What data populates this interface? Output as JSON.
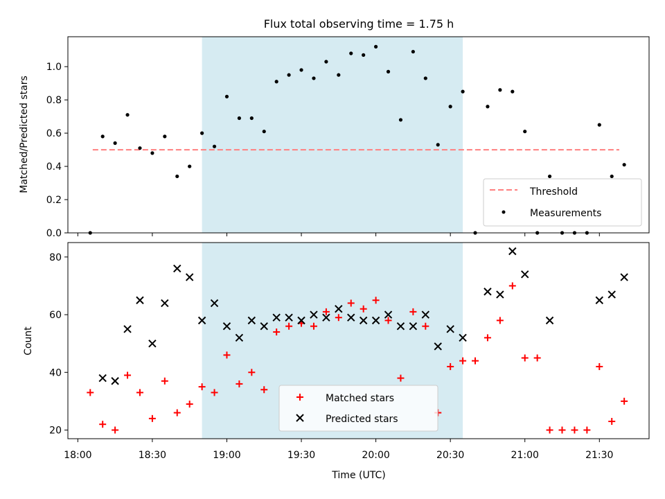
{
  "colors": {
    "shade": "#add8e6",
    "threshold": "#ff7f7f",
    "matched": "#ff0000",
    "predicted": "#000000",
    "measurement": "#000000"
  },
  "chart_data": [
    {
      "type": "scatter",
      "title": "Flux total observing time = 1.75 h",
      "xlabel": "",
      "ylabel": "Matched/Predicted stars",
      "xlim": [
        "17:56",
        "21:50"
      ],
      "ylim": [
        0,
        1.18
      ],
      "yticks": [
        0.0,
        0.2,
        0.4,
        0.6,
        0.8,
        1.0
      ],
      "ytick_labels": [
        "0.0",
        "0.2",
        "0.4",
        "0.6",
        "0.8",
        "1.0"
      ],
      "shaded_interval": [
        "18:50",
        "20:35"
      ],
      "threshold": {
        "name": "Threshold",
        "value": 0.5,
        "x_range": [
          "18:06",
          "21:38"
        ]
      },
      "legend": {
        "position": "lower right",
        "entries": [
          "Threshold",
          "Measurements"
        ]
      },
      "series": [
        {
          "name": "Measurements",
          "marker": "dot",
          "x": [
            "18:05",
            "18:10",
            "18:15",
            "18:20",
            "18:25",
            "18:30",
            "18:35",
            "18:40",
            "18:45",
            "18:50",
            "18:55",
            "19:00",
            "19:05",
            "19:10",
            "19:15",
            "19:20",
            "19:25",
            "19:30",
            "19:35",
            "19:40",
            "19:45",
            "19:50",
            "19:55",
            "20:00",
            "20:05",
            "20:10",
            "20:15",
            "20:20",
            "20:25",
            "20:30",
            "20:35",
            "20:40",
            "20:45",
            "20:50",
            "20:55",
            "21:00",
            "21:05",
            "21:10",
            "21:15",
            "21:20",
            "21:25",
            "21:30",
            "21:35",
            "21:40"
          ],
          "y": [
            0.0,
            0.58,
            0.54,
            0.71,
            0.51,
            0.48,
            0.58,
            0.34,
            0.4,
            0.6,
            0.52,
            0.82,
            0.69,
            0.69,
            0.61,
            0.91,
            0.95,
            0.98,
            0.93,
            1.03,
            0.95,
            1.08,
            1.07,
            1.12,
            0.97,
            0.68,
            1.09,
            0.93,
            0.53,
            0.76,
            0.85,
            0.0,
            0.76,
            0.86,
            0.85,
            0.61,
            0.0,
            0.34,
            0.0,
            0.0,
            0.0,
            0.65,
            0.34,
            0.41
          ]
        }
      ]
    },
    {
      "type": "scatter",
      "title": "",
      "xlabel": "Time (UTC)",
      "ylabel": "Count",
      "xlim": [
        "17:56",
        "21:50"
      ],
      "ylim": [
        17,
        85
      ],
      "yticks": [
        20,
        40,
        60,
        80
      ],
      "ytick_labels": [
        "20",
        "40",
        "60",
        "80"
      ],
      "xticks": [
        "18:00",
        "18:30",
        "19:00",
        "19:30",
        "20:00",
        "20:30",
        "21:00",
        "21:30"
      ],
      "shaded_interval": [
        "18:50",
        "20:35"
      ],
      "legend": {
        "position": "lower center",
        "entries": [
          "Matched stars",
          "Predicted stars"
        ]
      },
      "series": [
        {
          "name": "Matched stars",
          "marker": "plus",
          "x": [
            "18:05",
            "18:10",
            "18:15",
            "18:20",
            "18:25",
            "18:30",
            "18:35",
            "18:40",
            "18:45",
            "18:50",
            "18:55",
            "19:00",
            "19:05",
            "19:10",
            "19:15",
            "19:20",
            "19:25",
            "19:30",
            "19:35",
            "19:40",
            "19:45",
            "19:50",
            "19:55",
            "20:00",
            "20:05",
            "20:10",
            "20:15",
            "20:20",
            "20:25",
            "20:30",
            "20:35",
            "20:40",
            "20:45",
            "20:50",
            "20:55",
            "21:00",
            "21:05",
            "21:10",
            "21:15",
            "21:20",
            "21:25",
            "21:30",
            "21:35",
            "21:40"
          ],
          "y": [
            33,
            22,
            20,
            39,
            33,
            24,
            37,
            26,
            29,
            35,
            33,
            46,
            36,
            40,
            34,
            54,
            56,
            57,
            56,
            61,
            59,
            64,
            62,
            65,
            58,
            38,
            61,
            56,
            26,
            42,
            44,
            44,
            52,
            58,
            70,
            45,
            45,
            20,
            20,
            20,
            20,
            42,
            23,
            30
          ]
        },
        {
          "name": "Predicted stars",
          "marker": "x",
          "x": [
            "18:10",
            "18:15",
            "18:20",
            "18:25",
            "18:30",
            "18:35",
            "18:40",
            "18:45",
            "18:50",
            "18:55",
            "19:00",
            "19:05",
            "19:10",
            "19:15",
            "19:20",
            "19:25",
            "19:30",
            "19:35",
            "19:40",
            "19:45",
            "19:50",
            "19:55",
            "20:00",
            "20:05",
            "20:10",
            "20:15",
            "20:20",
            "20:25",
            "20:30",
            "20:35",
            "20:45",
            "20:50",
            "20:55",
            "21:00",
            "21:10",
            "21:30",
            "21:35",
            "21:40"
          ],
          "y": [
            38,
            37,
            55,
            65,
            50,
            64,
            76,
            73,
            58,
            64,
            56,
            52,
            58,
            56,
            59,
            59,
            58,
            60,
            59,
            62,
            59,
            58,
            58,
            60,
            56,
            56,
            60,
            49,
            55,
            52,
            68,
            67,
            82,
            74,
            58,
            65,
            67,
            73
          ]
        }
      ]
    }
  ]
}
